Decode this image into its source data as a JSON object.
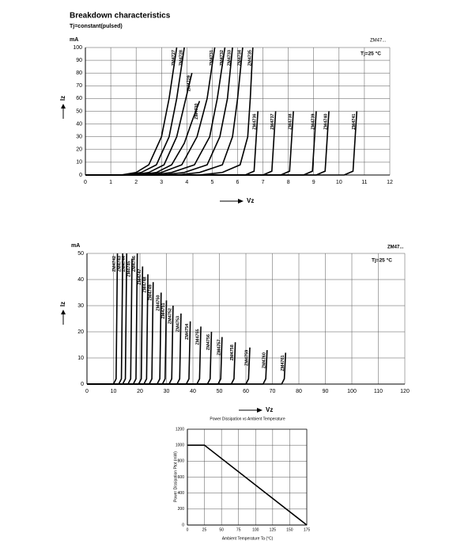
{
  "chart_data": [
    {
      "type": "line",
      "title": "Breakdown characteristics",
      "subtitle": "Tj=constant(pulsed)",
      "y_unit": "mA",
      "ylabel": "Iz",
      "xlabel": "Vz",
      "annotations": [
        "ZM47...",
        "Tj=25 °C"
      ],
      "xlim": [
        0,
        12
      ],
      "xticks": [
        0,
        1,
        2,
        3,
        4,
        5,
        6,
        7,
        8,
        9,
        10,
        11,
        12
      ],
      "ylim": [
        0,
        100
      ],
      "yticks": [
        0,
        10,
        20,
        30,
        40,
        50,
        60,
        70,
        80,
        90,
        100
      ],
      "grid": true,
      "series": [
        {
          "name": "ZM4727",
          "color": "#000000",
          "x": [
            0,
            1.4,
            2.0,
            2.5,
            3.0,
            3.3,
            3.6
          ],
          "values": [
            0,
            0,
            2,
            8,
            30,
            60,
            100
          ]
        },
        {
          "name": "ZM4728",
          "color": "#000000",
          "x": [
            0,
            1.6,
            2.2,
            2.8,
            3.3,
            3.6,
            3.9
          ],
          "values": [
            0,
            0,
            2,
            8,
            30,
            60,
            100
          ]
        },
        {
          "name": "ZM4729",
          "color": "#000000",
          "x": [
            0,
            1.8,
            2.5,
            3.1,
            3.6,
            3.9,
            4.2
          ],
          "values": [
            0,
            0,
            2,
            8,
            30,
            55,
            80
          ]
        },
        {
          "name": "ZM4730",
          "color": "#000000",
          "x": [
            0,
            2.0,
            2.8,
            3.4,
            3.9,
            4.2,
            4.5
          ],
          "values": [
            0,
            0,
            2,
            8,
            25,
            42,
            58
          ]
        },
        {
          "name": "ZM4731",
          "color": "#000000",
          "x": [
            0,
            2.3,
            3.0,
            3.8,
            4.4,
            4.8,
            5.1
          ],
          "values": [
            0,
            0,
            2,
            8,
            30,
            60,
            100
          ]
        },
        {
          "name": "ZM4732",
          "color": "#000000",
          "x": [
            0,
            2.6,
            3.4,
            4.3,
            4.9,
            5.2,
            5.5
          ],
          "values": [
            0,
            0,
            2,
            8,
            30,
            60,
            100
          ]
        },
        {
          "name": "ZM4733",
          "color": "#000000",
          "x": [
            0,
            3.0,
            3.9,
            4.8,
            5.3,
            5.6,
            5.8
          ],
          "values": [
            0,
            0,
            2,
            8,
            30,
            60,
            100
          ]
        },
        {
          "name": "ZM4734",
          "color": "#000000",
          "x": [
            0,
            3.6,
            4.5,
            5.4,
            5.8,
            6.0,
            6.2
          ],
          "values": [
            0,
            0,
            2,
            8,
            30,
            60,
            100
          ]
        },
        {
          "name": "ZM4735",
          "color": "#000000",
          "x": [
            0,
            4.5,
            5.4,
            6.1,
            6.4,
            6.5,
            6.6
          ],
          "values": [
            0,
            0,
            2,
            8,
            30,
            60,
            100
          ]
        },
        {
          "name": "ZM4736",
          "color": "#000000",
          "x": [
            0,
            6.3,
            6.65,
            6.8
          ],
          "values": [
            0,
            0,
            3,
            50
          ]
        },
        {
          "name": "ZM4737",
          "color": "#000000",
          "x": [
            0,
            7.0,
            7.35,
            7.5
          ],
          "values": [
            0,
            0,
            3,
            50
          ]
        },
        {
          "name": "ZM4738",
          "color": "#000000",
          "x": [
            0,
            7.7,
            8.05,
            8.2
          ],
          "values": [
            0,
            0,
            3,
            50
          ]
        },
        {
          "name": "ZM4739",
          "color": "#000000",
          "x": [
            0,
            8.6,
            8.95,
            9.1
          ],
          "values": [
            0,
            0,
            3,
            50
          ]
        },
        {
          "name": "ZM4740",
          "color": "#000000",
          "x": [
            0,
            9.1,
            9.45,
            9.6
          ],
          "values": [
            0,
            0,
            3,
            50
          ]
        },
        {
          "name": "ZM4741",
          "color": "#000000",
          "x": [
            0,
            10.2,
            10.55,
            10.7
          ],
          "values": [
            0,
            0,
            3,
            50
          ]
        }
      ]
    },
    {
      "type": "line",
      "y_unit": "mA",
      "ylabel": "Iz",
      "xlabel": "Vz",
      "annotations": [
        "ZM47...",
        "Tj=25 °C"
      ],
      "xlim": [
        0,
        120
      ],
      "xticks": [
        0,
        10,
        20,
        30,
        40,
        50,
        60,
        70,
        80,
        90,
        100,
        110,
        120
      ],
      "ylim": [
        0,
        50
      ],
      "yticks": [
        0,
        10,
        20,
        30,
        40,
        50
      ],
      "grid": true,
      "series": [
        {
          "name": "ZM4742",
          "color": "#000000",
          "x": [
            0,
            10,
            11,
            11.5
          ],
          "values": [
            0,
            0,
            2,
            50
          ]
        },
        {
          "name": "ZM4743",
          "color": "#000000",
          "x": [
            0,
            12,
            13,
            13.5
          ],
          "values": [
            0,
            0,
            2,
            50
          ]
        },
        {
          "name": "ZM4744",
          "color": "#000000",
          "x": [
            0,
            13.5,
            14.5,
            15
          ],
          "values": [
            0,
            0,
            2,
            50
          ]
        },
        {
          "name": "ZM4745",
          "color": "#000000",
          "x": [
            0,
            15.5,
            16.5,
            17
          ],
          "values": [
            0,
            0,
            2,
            48
          ]
        },
        {
          "name": "ZM4746",
          "color": "#000000",
          "x": [
            0,
            17.5,
            18.5,
            19
          ],
          "values": [
            0,
            0,
            2,
            50
          ]
        },
        {
          "name": "ZM4747",
          "color": "#000000",
          "x": [
            0,
            19.5,
            20.5,
            21
          ],
          "values": [
            0,
            0,
            2,
            45
          ]
        },
        {
          "name": "ZM4748",
          "color": "#000000",
          "x": [
            0,
            21.5,
            22.5,
            23
          ],
          "values": [
            0,
            0,
            2,
            42
          ]
        },
        {
          "name": "ZM4749",
          "color": "#000000",
          "x": [
            0,
            23.5,
            24.5,
            25
          ],
          "values": [
            0,
            0,
            2,
            39
          ]
        },
        {
          "name": "ZM4750",
          "color": "#000000",
          "x": [
            0,
            26.5,
            27.5,
            28
          ],
          "values": [
            0,
            0,
            2,
            35
          ]
        },
        {
          "name": "ZM4751",
          "color": "#000000",
          "x": [
            0,
            28.5,
            29.5,
            30
          ],
          "values": [
            0,
            0,
            2,
            32
          ]
        },
        {
          "name": "ZM4752",
          "color": "#000000",
          "x": [
            0,
            31,
            32,
            32.5
          ],
          "values": [
            0,
            0,
            2,
            30
          ]
        },
        {
          "name": "ZM4753",
          "color": "#000000",
          "x": [
            0,
            34,
            35,
            35.5
          ],
          "values": [
            0,
            0,
            2,
            27
          ]
        },
        {
          "name": "ZM4754",
          "color": "#000000",
          "x": [
            0,
            37.5,
            38.5,
            39
          ],
          "values": [
            0,
            0,
            2,
            24
          ]
        },
        {
          "name": "ZM4755",
          "color": "#000000",
          "x": [
            0,
            41.5,
            42.5,
            43
          ],
          "values": [
            0,
            0,
            2,
            22
          ]
        },
        {
          "name": "ZM4756",
          "color": "#000000",
          "x": [
            0,
            45.5,
            46.5,
            47
          ],
          "values": [
            0,
            0,
            2,
            20
          ]
        },
        {
          "name": "ZM4757",
          "color": "#000000",
          "x": [
            0,
            49.5,
            50.5,
            51
          ],
          "values": [
            0,
            0,
            2,
            18
          ]
        },
        {
          "name": "ZM4758",
          "color": "#000000",
          "x": [
            0,
            54.5,
            55.5,
            56
          ],
          "values": [
            0,
            0,
            2,
            16
          ]
        },
        {
          "name": "ZM4759",
          "color": "#000000",
          "x": [
            0,
            60,
            61,
            61.5
          ],
          "values": [
            0,
            0,
            2,
            14
          ]
        },
        {
          "name": "ZM4760",
          "color": "#000000",
          "x": [
            0,
            66.5,
            67.5,
            68
          ],
          "values": [
            0,
            0,
            2,
            13
          ]
        },
        {
          "name": "ZM4761",
          "color": "#000000",
          "x": [
            0,
            73.5,
            74.5,
            75
          ],
          "values": [
            0,
            0,
            2,
            12
          ]
        }
      ]
    },
    {
      "type": "line",
      "title": "Power Dissipation vs Ambient Temperature",
      "ylabel": "Power Dissipation Ptot (mW)",
      "xlabel": "Ambient Temperature Ta (°C)",
      "xlim": [
        0,
        175
      ],
      "xticks": [
        0,
        25,
        50,
        75,
        100,
        125,
        150,
        175
      ],
      "ylim": [
        0,
        1200
      ],
      "yticks": [
        0,
        200,
        400,
        600,
        800,
        1000,
        1200
      ],
      "grid": true,
      "series": [
        {
          "color": "#000000",
          "x": [
            0,
            25,
            175
          ],
          "values": [
            1000,
            1000,
            0
          ]
        }
      ]
    }
  ]
}
